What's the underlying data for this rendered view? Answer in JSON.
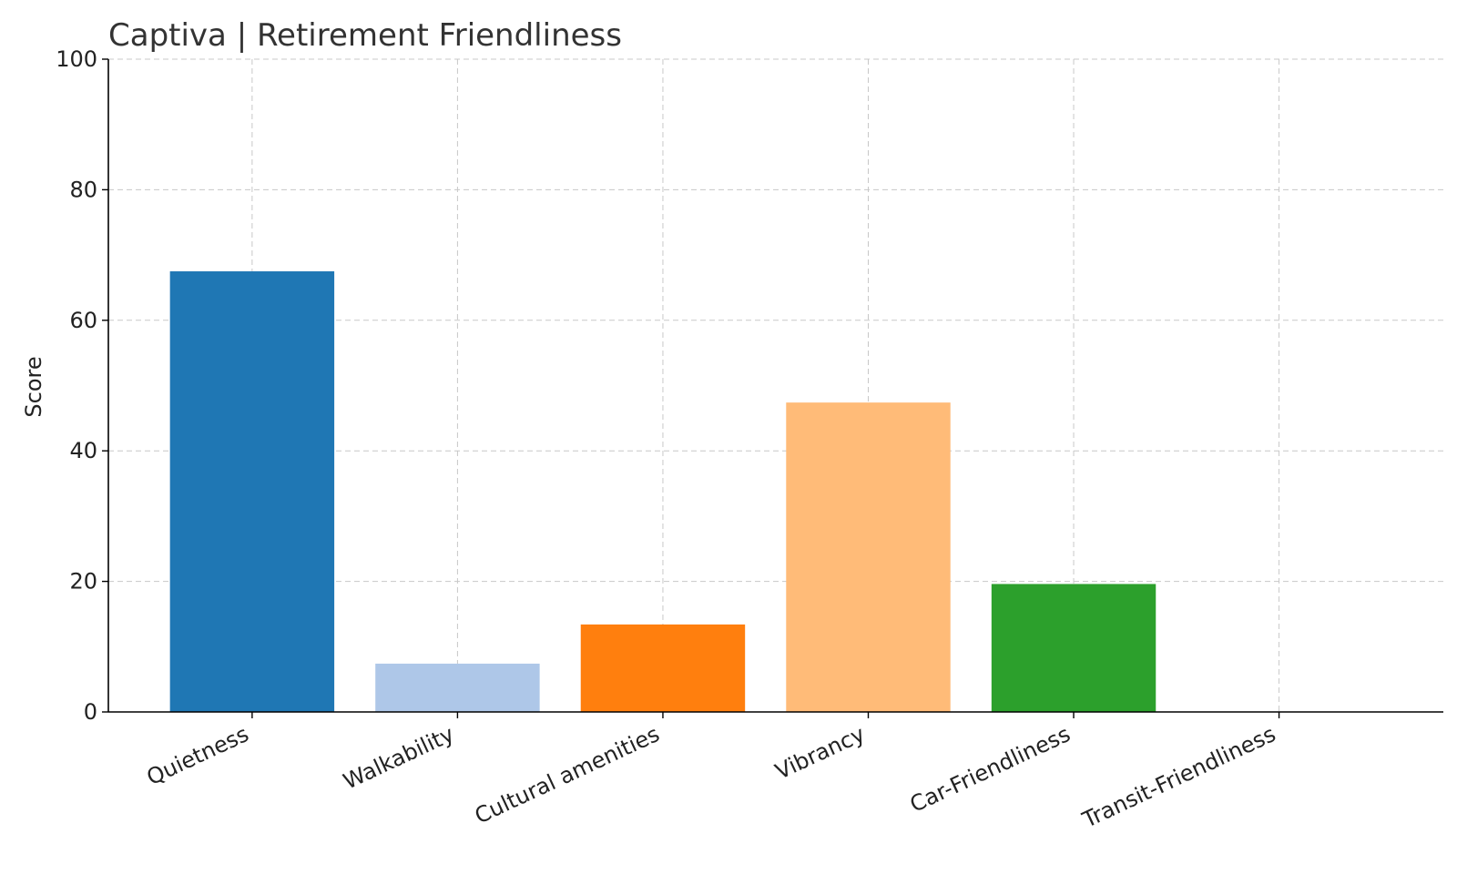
{
  "chart_data": {
    "type": "bar",
    "title": "Captiva | Retirement Friendliness",
    "xlabel": "",
    "ylabel": "Score",
    "ylim": [
      0,
      100
    ],
    "yticks": [
      0,
      20,
      40,
      60,
      80,
      100
    ],
    "grid": true,
    "categories": [
      "Quietness",
      "Walkability",
      "Cultural amenities",
      "Vibrancy",
      "Car-Friendliness",
      "Transit-Friendliness"
    ],
    "values": [
      67.5,
      7.4,
      13.4,
      47.4,
      19.6,
      0
    ],
    "colors": [
      "#1f77b4",
      "#aec7e8",
      "#ff7f0e",
      "#ffbb78",
      "#2ca02c",
      "#98df8a"
    ]
  }
}
